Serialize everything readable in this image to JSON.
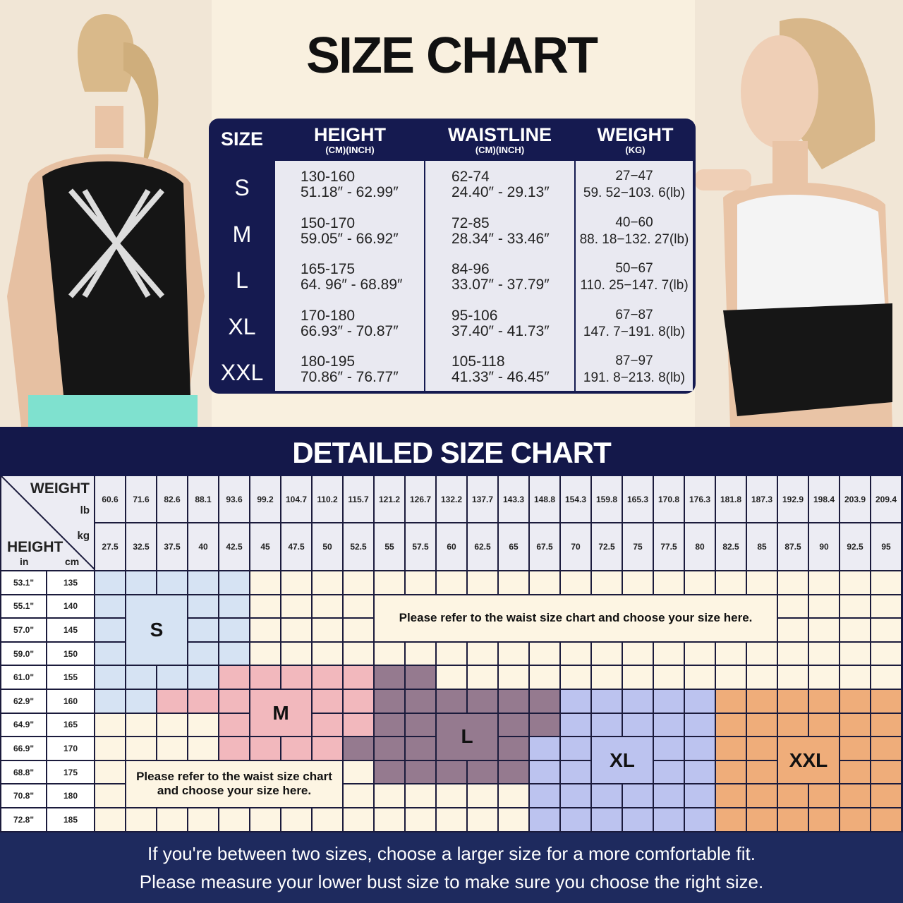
{
  "title": "SIZE CHART",
  "size_table": {
    "headers": {
      "size": "SIZE",
      "height": {
        "label": "HEIGHT",
        "unit": "(CM)(INCH)"
      },
      "waistline": {
        "label": "WAISTLINE",
        "unit": "(CM)(INCH)"
      },
      "weight": {
        "label": "WEIGHT",
        "unit": "(KG)"
      }
    },
    "rows": [
      {
        "size": "S",
        "height_cm": "130-160",
        "height_in": "51.18″ - 62.99″",
        "waist_cm": "62-74",
        "waist_in": "24.40″ - 29.13″",
        "weight_kg": "27−47",
        "weight_lb": "59. 52−103. 6(lb)"
      },
      {
        "size": "M",
        "height_cm": "150-170",
        "height_in": "59.05″ - 66.92″",
        "waist_cm": "72-85",
        "waist_in": "28.34″ - 33.46″",
        "weight_kg": "40−60",
        "weight_lb": "88. 18−132. 27(lb)"
      },
      {
        "size": "L",
        "height_cm": "165-175",
        "height_in": "64. 96″ -  68.89″",
        "waist_cm": "84-96",
        "waist_in": "33.07″ - 37.79″",
        "weight_kg": "50−67",
        "weight_lb": "110. 25−147. 7(lb)"
      },
      {
        "size": "XL",
        "height_cm": "170-180",
        "height_in": "66.93″ - 70.87″",
        "waist_cm": "95-106",
        "waist_in": "37.40″ - 41.73″",
        "weight_kg": "67−87",
        "weight_lb": "147. 7−191. 8(lb)"
      },
      {
        "size": "XXL",
        "height_cm": "180-195",
        "height_in": "70.86″ - 76.77″",
        "waist_cm": "105-118",
        "waist_in": "41.33″ - 46.45″",
        "weight_kg": "87−97",
        "weight_lb": "191. 8−213. 8(lb)"
      }
    ]
  },
  "detailed": {
    "title": "DETAILED SIZE CHART",
    "corner": {
      "weight": "WEIGHT",
      "lb": "lb",
      "kg": "kg",
      "height": "HEIGHT",
      "in": "in",
      "cm": "cm"
    },
    "weights_lb": [
      "60.6",
      "71.6",
      "82.6",
      "88.1",
      "93.6",
      "99.2",
      "104.7",
      "110.2",
      "115.7",
      "121.2",
      "126.7",
      "132.2",
      "137.7",
      "143.3",
      "148.8",
      "154.3",
      "159.8",
      "165.3",
      "170.8",
      "176.3",
      "181.8",
      "187.3",
      "192.9",
      "198.4",
      "203.9",
      "209.4"
    ],
    "weights_kg": [
      "27.5",
      "32.5",
      "37.5",
      "40",
      "42.5",
      "45",
      "47.5",
      "50",
      "52.5",
      "55",
      "57.5",
      "60",
      "62.5",
      "65",
      "67.5",
      "70",
      "72.5",
      "75",
      "77.5",
      "80",
      "82.5",
      "85",
      "87.5",
      "90",
      "92.5",
      "95"
    ],
    "heights_in": [
      "53.1\"",
      "55.1\"",
      "57.0\"",
      "59.0\"",
      "61.0\"",
      "62.9\"",
      "64.9\"",
      "66.9\"",
      "68.8\"",
      "70.8\"",
      "72.8\""
    ],
    "heights_cm": [
      "135",
      "140",
      "145",
      "150",
      "155",
      "160",
      "165",
      "170",
      "175",
      "180",
      "185"
    ],
    "size_map": [
      "SSSSS.....................",
      "SSSSS.....................",
      "SSSSS.....................",
      "SSSSS.....................",
      "SSSSMMMMMLL...............",
      "SSMMMMMMMLLLLLLXXXXXZZZZZZ",
      "....MMMMMLLLLLLXXXXXZZZZZZ",
      "....MMMMLLLLLLXXXXXXZZZZZZ",
      ".........LLLLLXXXXXXZZZZZZ",
      "..............XXXXXXZZZZZZ",
      "..............XXXXXXZZZZZZ"
    ],
    "size_codes": {
      "S": "S",
      "M": "M",
      "L": "L",
      "X": "XL",
      "Z": "XXL"
    },
    "size_colors": {
      "S": "#d6e3f3",
      "M": "#f2b8bd",
      "L": "#957a8f",
      "X": "#bcc3ef",
      "Z": "#efad7a",
      ".": "#fdf5e3"
    },
    "labels": {
      "S": "S",
      "M": "M",
      "L": "L",
      "XL": "XL",
      "XXL": "XXL"
    },
    "note_top": "Please refer to the waist size chart and choose your size here.",
    "note_bottom": "Please refer to the waist size chart and choose your size here."
  },
  "footer": {
    "line1": "If you're between two sizes, choose a larger size for a more comfortable fit.",
    "line2": "Please measure your lower bust size to make sure you choose the right size."
  },
  "colors": {
    "navy": "#151a50",
    "cream": "#f9f0df"
  }
}
